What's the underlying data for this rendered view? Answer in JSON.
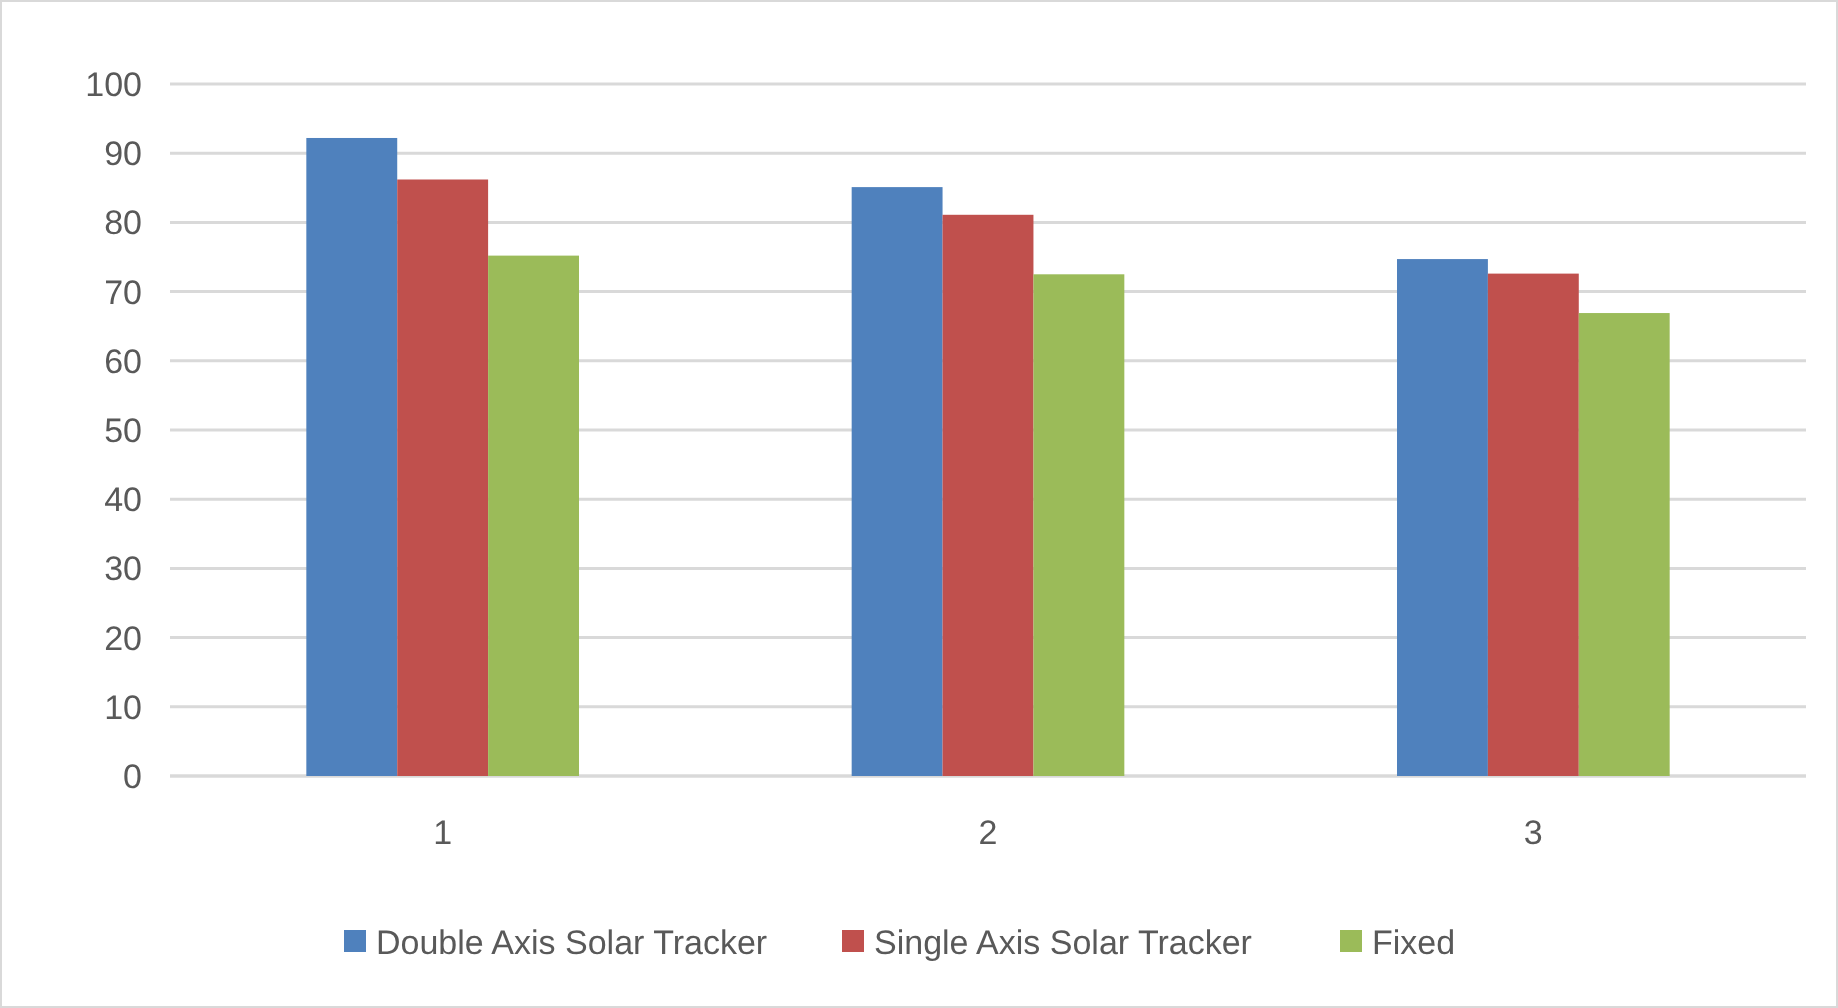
{
  "chart_data": {
    "type": "bar",
    "categories": [
      "1",
      "2",
      "3"
    ],
    "series": [
      {
        "name": "Double Axis Solar Tracker",
        "color": "#4f81bd",
        "values": [
          92.2,
          85.1,
          74.7
        ]
      },
      {
        "name": "Single Axis Solar Tracker",
        "color": "#c0504d",
        "values": [
          86.2,
          81.1,
          72.6
        ]
      },
      {
        "name": "Fixed",
        "color": "#9bbb59",
        "values": [
          75.2,
          72.5,
          66.9
        ]
      }
    ],
    "ylim": [
      0,
      100
    ],
    "yticks": [
      0,
      10,
      20,
      30,
      40,
      50,
      60,
      70,
      80,
      90,
      100
    ],
    "grid": "y",
    "legend": "bottom"
  }
}
